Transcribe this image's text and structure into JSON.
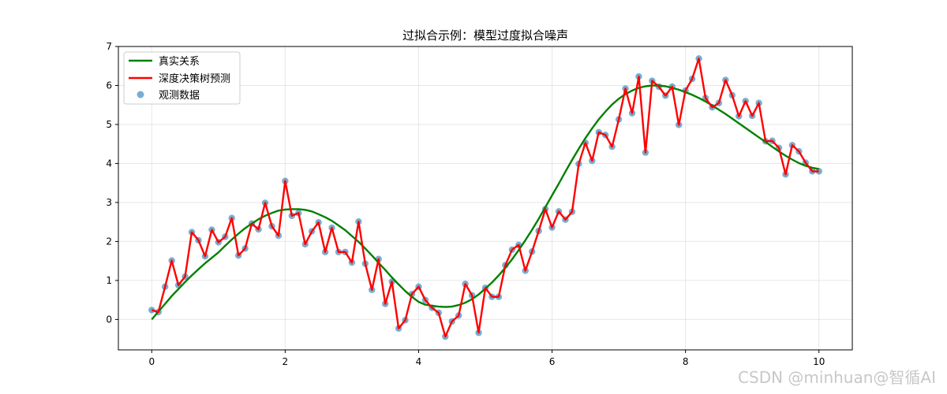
{
  "chart_data": {
    "type": "line",
    "title": "过拟合示例：模型过度拟合噪声",
    "xlabel": "",
    "ylabel": "",
    "xlim": [
      -0.5,
      10.5
    ],
    "ylim": [
      -0.78,
      7.0
    ],
    "xticks": [
      0,
      2,
      4,
      6,
      8,
      10
    ],
    "yticks": [
      0,
      1,
      2,
      3,
      4,
      5,
      6,
      7
    ],
    "grid": true,
    "legend_position": "top-left",
    "series": [
      {
        "name": "真实关系",
        "kind": "line",
        "color": "#008000",
        "x": [
          0,
          0.1,
          0.2,
          0.3,
          0.4,
          0.5,
          0.6,
          0.7,
          0.8,
          0.9,
          1.0,
          1.1,
          1.2,
          1.3,
          1.4,
          1.5,
          1.6,
          1.7,
          1.8,
          1.9,
          2.0,
          2.1,
          2.2,
          2.3,
          2.4,
          2.5,
          2.6,
          2.7,
          2.8,
          2.9,
          3.0,
          3.1,
          3.2,
          3.3,
          3.4,
          3.5,
          3.6,
          3.7,
          3.8,
          3.9,
          4.0,
          4.1,
          4.2,
          4.3,
          4.4,
          4.5,
          4.6,
          4.7,
          4.8,
          4.9,
          5.0,
          5.1,
          5.2,
          5.3,
          5.4,
          5.5,
          5.6,
          5.7,
          5.8,
          5.9,
          6.0,
          6.1,
          6.2,
          6.3,
          6.4,
          6.5,
          6.6,
          6.7,
          6.8,
          6.9,
          7.0,
          7.1,
          7.2,
          7.3,
          7.4,
          7.5,
          7.6,
          7.7,
          7.8,
          7.9,
          8.0,
          8.1,
          8.2,
          8.3,
          8.4,
          8.5,
          8.6,
          8.7,
          8.8,
          8.9,
          9.0,
          9.1,
          9.2,
          9.3,
          9.4,
          9.5,
          9.6,
          9.7,
          9.8,
          9.9,
          10.0
        ],
        "y": [
          0.0,
          0.2,
          0.4,
          0.6,
          0.78,
          0.96,
          1.13,
          1.29,
          1.44,
          1.58,
          1.72,
          1.89,
          2.05,
          2.2,
          2.34,
          2.46,
          2.57,
          2.66,
          2.73,
          2.79,
          2.82,
          2.83,
          2.83,
          2.81,
          2.77,
          2.7,
          2.62,
          2.53,
          2.41,
          2.29,
          2.14,
          1.99,
          1.82,
          1.64,
          1.45,
          1.27,
          1.08,
          0.9,
          0.73,
          0.58,
          0.45,
          0.38,
          0.35,
          0.33,
          0.32,
          0.33,
          0.37,
          0.43,
          0.52,
          0.64,
          0.79,
          0.95,
          1.13,
          1.33,
          1.54,
          1.78,
          2.03,
          2.3,
          2.58,
          2.88,
          3.18,
          3.48,
          3.79,
          4.09,
          4.38,
          4.65,
          4.9,
          5.13,
          5.33,
          5.51,
          5.66,
          5.78,
          5.87,
          5.94,
          5.98,
          6.0,
          6.0,
          5.98,
          5.94,
          5.89,
          5.83,
          5.76,
          5.68,
          5.59,
          5.49,
          5.38,
          5.27,
          5.15,
          5.03,
          4.91,
          4.79,
          4.67,
          4.55,
          4.43,
          4.31,
          4.2,
          4.1,
          4.01,
          3.94,
          3.89,
          3.86
        ]
      },
      {
        "name": "深度决策树预测",
        "kind": "line",
        "color": "#ff0000",
        "x": [
          0,
          0.1,
          0.2,
          0.3,
          0.4,
          0.5,
          0.6,
          0.7,
          0.8,
          0.9,
          1.0,
          1.1,
          1.2,
          1.3,
          1.4,
          1.5,
          1.6,
          1.7,
          1.8,
          1.9,
          2.0,
          2.1,
          2.2,
          2.3,
          2.4,
          2.5,
          2.6,
          2.7,
          2.8,
          2.9,
          3.0,
          3.1,
          3.2,
          3.3,
          3.4,
          3.5,
          3.6,
          3.7,
          3.8,
          3.9,
          4.0,
          4.1,
          4.2,
          4.3,
          4.4,
          4.5,
          4.6,
          4.7,
          4.8,
          4.9,
          5.0,
          5.1,
          5.2,
          5.3,
          5.4,
          5.5,
          5.6,
          5.7,
          5.8,
          5.9,
          6.0,
          6.1,
          6.2,
          6.3,
          6.4,
          6.5,
          6.6,
          6.7,
          6.8,
          6.9,
          7.0,
          7.1,
          7.2,
          7.3,
          7.4,
          7.5,
          7.6,
          7.7,
          7.8,
          7.9,
          8.0,
          8.1,
          8.2,
          8.3,
          8.4,
          8.5,
          8.6,
          8.7,
          8.8,
          8.9,
          9.0,
          9.1,
          9.2,
          9.3,
          9.4,
          9.5,
          9.6,
          9.7,
          9.8,
          9.9,
          10.0
        ],
        "y": [
          0.24,
          0.19,
          0.84,
          1.51,
          0.88,
          1.1,
          2.24,
          2.03,
          1.62,
          2.3,
          1.98,
          2.12,
          2.6,
          1.64,
          1.82,
          2.46,
          2.31,
          2.99,
          2.39,
          2.15,
          3.55,
          2.66,
          2.73,
          1.93,
          2.26,
          2.49,
          1.73,
          2.35,
          1.73,
          1.73,
          1.46,
          2.51,
          1.43,
          0.76,
          1.55,
          0.4,
          0.97,
          -0.23,
          -0.02,
          0.65,
          0.84,
          0.5,
          0.3,
          0.17,
          -0.44,
          -0.05,
          0.1,
          0.91,
          0.62,
          -0.34,
          0.81,
          0.58,
          0.58,
          1.39,
          1.79,
          1.91,
          1.25,
          1.74,
          2.27,
          2.83,
          2.36,
          2.77,
          2.56,
          2.76,
          3.99,
          4.53,
          4.07,
          4.8,
          4.73,
          4.43,
          5.13,
          5.92,
          5.29,
          6.23,
          4.28,
          6.12,
          5.97,
          5.74,
          5.97,
          4.99,
          5.87,
          6.17,
          6.69,
          5.68,
          5.44,
          5.55,
          6.14,
          5.75,
          5.21,
          5.6,
          5.22,
          5.55,
          4.57,
          4.58,
          4.4,
          3.72,
          4.47,
          4.31,
          4.02,
          3.8,
          3.8
        ]
      },
      {
        "name": "观测数据",
        "kind": "scatter",
        "color": "#1f77b4",
        "x": [
          0,
          0.1,
          0.2,
          0.3,
          0.4,
          0.5,
          0.6,
          0.7,
          0.8,
          0.9,
          1.0,
          1.1,
          1.2,
          1.3,
          1.4,
          1.5,
          1.6,
          1.7,
          1.8,
          1.9,
          2.0,
          2.1,
          2.2,
          2.3,
          2.4,
          2.5,
          2.6,
          2.7,
          2.8,
          2.9,
          3.0,
          3.1,
          3.2,
          3.3,
          3.4,
          3.5,
          3.6,
          3.7,
          3.8,
          3.9,
          4.0,
          4.1,
          4.2,
          4.3,
          4.4,
          4.5,
          4.6,
          4.7,
          4.8,
          4.9,
          5.0,
          5.1,
          5.2,
          5.3,
          5.4,
          5.5,
          5.6,
          5.7,
          5.8,
          5.9,
          6.0,
          6.1,
          6.2,
          6.3,
          6.4,
          6.5,
          6.6,
          6.7,
          6.8,
          6.9,
          7.0,
          7.1,
          7.2,
          7.3,
          7.4,
          7.5,
          7.6,
          7.7,
          7.8,
          7.9,
          8.0,
          8.1,
          8.2,
          8.3,
          8.4,
          8.5,
          8.6,
          8.7,
          8.8,
          8.9,
          9.0,
          9.1,
          9.2,
          9.3,
          9.4,
          9.5,
          9.6,
          9.7,
          9.8,
          9.9,
          10.0
        ],
        "y": [
          0.24,
          0.19,
          0.84,
          1.51,
          0.88,
          1.1,
          2.24,
          2.03,
          1.62,
          2.3,
          1.98,
          2.12,
          2.6,
          1.64,
          1.82,
          2.46,
          2.31,
          2.99,
          2.39,
          2.15,
          3.55,
          2.66,
          2.73,
          1.93,
          2.26,
          2.49,
          1.73,
          2.35,
          1.73,
          1.73,
          1.46,
          2.51,
          1.43,
          0.76,
          1.55,
          0.4,
          0.97,
          -0.23,
          -0.02,
          0.65,
          0.84,
          0.5,
          0.3,
          0.17,
          -0.44,
          -0.05,
          0.1,
          0.91,
          0.62,
          -0.34,
          0.81,
          0.58,
          0.58,
          1.39,
          1.79,
          1.91,
          1.25,
          1.74,
          2.27,
          2.83,
          2.36,
          2.77,
          2.56,
          2.76,
          3.99,
          4.53,
          4.07,
          4.8,
          4.73,
          4.43,
          5.13,
          5.92,
          5.29,
          6.23,
          4.28,
          6.12,
          5.97,
          5.74,
          5.97,
          4.99,
          5.87,
          6.17,
          6.69,
          5.68,
          5.44,
          5.55,
          6.14,
          5.75,
          5.21,
          5.6,
          5.22,
          5.55,
          4.57,
          4.58,
          4.4,
          3.72,
          4.47,
          4.31,
          4.02,
          3.8,
          3.8
        ]
      }
    ]
  },
  "watermark": "CSDN @minhuan@智循AI"
}
